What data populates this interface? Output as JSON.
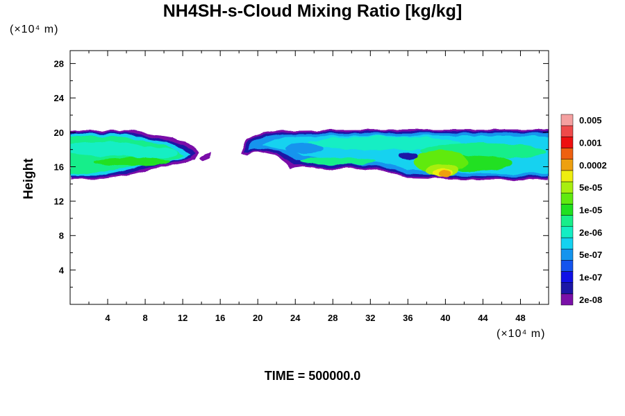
{
  "chart_data": {
    "type": "heatmap",
    "title": "NH4SH-s-Cloud Mixing Ratio [kg/kg]",
    "xlabel": "",
    "ylabel": "Height",
    "x_unit": "(×10⁴ m)",
    "y_unit": "(×10⁴ m)",
    "xlim": [
      0,
      51
    ],
    "ylim": [
      0,
      29.5
    ],
    "x_ticks": [
      4,
      8,
      12,
      16,
      20,
      24,
      28,
      32,
      36,
      40,
      44,
      48
    ],
    "y_ticks": [
      4,
      8,
      12,
      16,
      20,
      24,
      28
    ],
    "grid": false,
    "colorbar": {
      "placement": "right",
      "colors": [
        "#7a10a8",
        "#1c16a6",
        "#1010e6",
        "#1454ee",
        "#1494ee",
        "#14d2f0",
        "#14eec4",
        "#18ee8a",
        "#20e020",
        "#60ea10",
        "#a8ee10",
        "#eeee10",
        "#eea010",
        "#ee6010",
        "#ee1010",
        "#ee4a4a",
        "#f4a0a0"
      ],
      "labels": [
        "2e-08",
        "1e-07",
        "5e-07",
        "2e-06",
        "1e-05",
        "5e-05",
        "0.0002",
        "0.001",
        "0.005"
      ]
    },
    "cloud_regions": [
      {
        "name": "left",
        "x_range": [
          0,
          13.8
        ],
        "y_range": [
          14.5,
          20.3
        ],
        "dominant": "2e-06 to 1e-05"
      },
      {
        "name": "small-fragment",
        "x_range": [
          13.8,
          15.1
        ],
        "y_range": [
          16.6,
          17.8
        ],
        "dominant": "2e-08"
      },
      {
        "name": "right",
        "x_range": [
          18.2,
          51
        ],
        "y_range": [
          14.5,
          20.3
        ],
        "dominant": "2e-06 to 1e-05"
      },
      {
        "name": "core",
        "x_range": [
          38.6,
          40.8
        ],
        "y_range": [
          14.8,
          16.0
        ],
        "dominant": "0.0002"
      }
    ],
    "time_label": "TIME = 500000.0"
  },
  "colors": {
    "background": "#ffffff",
    "axis": "#000000"
  }
}
